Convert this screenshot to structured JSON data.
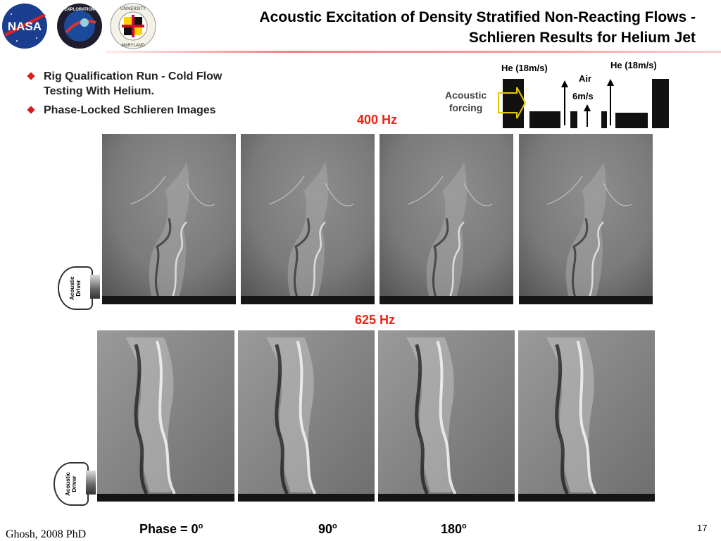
{
  "header": {
    "title_line1": "Acoustic Excitation of Density Stratified Non-Reacting Flows -",
    "title_line2": "Schlieren Results for Helium Jet"
  },
  "logos": {
    "nasa": "NASA",
    "exploration": "EXPLORATION",
    "umd_top": "UNIVERSITY",
    "umd_bottom": "MARYLAND"
  },
  "bullets": [
    "Rig Qualification Run - Cold Flow Testing With Helium.",
    "Phase-Locked Schlieren Images"
  ],
  "schematic": {
    "label_he_left": "He (18m/s)",
    "label_he_right": "He (18m/s)",
    "label_air": "Air",
    "label_air_speed": "6m/s",
    "label_forcing_line1": "Acoustic",
    "label_forcing_line2": "forcing"
  },
  "rows": [
    {
      "frequency": "400 Hz",
      "driver_label_line1": "Acoustic",
      "driver_label_line2": "Driver"
    },
    {
      "frequency": "625 Hz",
      "driver_label_line1": "Acoustic",
      "driver_label_line2": "Driver"
    }
  ],
  "phases": [
    "Phase = 0",
    "90",
    "180"
  ],
  "degree_mark": "o",
  "footer": {
    "citation": "Ghosh, 2008 PhD",
    "page": "17"
  },
  "colors": {
    "accent": "#ee2211",
    "title_rule": "#f08080",
    "bullet": "#d81b1b"
  }
}
